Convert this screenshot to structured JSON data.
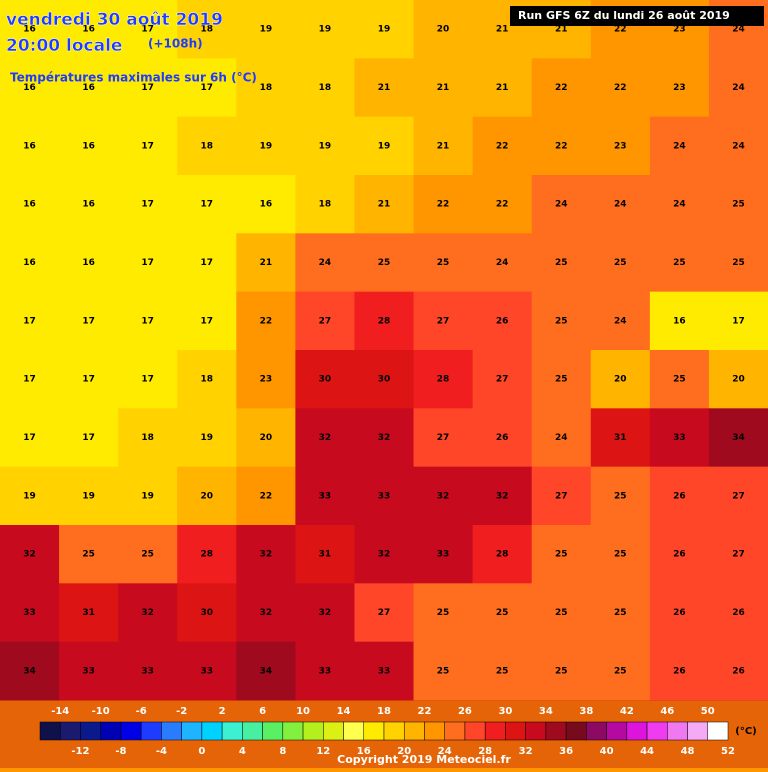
{
  "header": {
    "date": "vendredi 30 août 2019",
    "time": "20:00 locale",
    "lead": "(+108h)",
    "field": "Températures maximales sur 6h (°C)",
    "run": "Run GFS 6Z du lundi 26 août 2019"
  },
  "grid": {
    "rows": [
      [
        16,
        16,
        17,
        18,
        19,
        19,
        19,
        20,
        21,
        21,
        22,
        23,
        24
      ],
      [
        16,
        16,
        17,
        17,
        18,
        18,
        21,
        21,
        21,
        22,
        22,
        23,
        24
      ],
      [
        16,
        16,
        17,
        18,
        19,
        19,
        19,
        21,
        22,
        22,
        23,
        24,
        24
      ],
      [
        16,
        16,
        17,
        17,
        16,
        18,
        21,
        22,
        22,
        24,
        24,
        24,
        25
      ],
      [
        16,
        16,
        17,
        17,
        21,
        24,
        25,
        25,
        24,
        25,
        25,
        25,
        25
      ],
      [
        17,
        17,
        17,
        17,
        22,
        27,
        28,
        27,
        26,
        25,
        24,
        16,
        17
      ],
      [
        17,
        17,
        17,
        18,
        23,
        30,
        30,
        28,
        27,
        25,
        20,
        25,
        20
      ],
      [
        17,
        17,
        18,
        19,
        20,
        32,
        32,
        27,
        26,
        24,
        31,
        33,
        34
      ],
      [
        19,
        19,
        19,
        20,
        22,
        33,
        33,
        32,
        32,
        27,
        25,
        26,
        27
      ],
      [
        32,
        25,
        25,
        28,
        32,
        31,
        32,
        33,
        28,
        25,
        25,
        26,
        27
      ],
      [
        33,
        31,
        32,
        30,
        32,
        32,
        27,
        25,
        25,
        25,
        25,
        26,
        26
      ],
      [
        34,
        33,
        33,
        33,
        34,
        33,
        33,
        25,
        25,
        25,
        25,
        26,
        26
      ]
    ]
  },
  "colorbar": {
    "range": [
      -16,
      52
    ],
    "unit": "(°C)",
    "colors": [
      "#10104a",
      "#1a1a6e",
      "#0a1a8c",
      "#0000b4",
      "#0000e6",
      "#1e3cff",
      "#2a7cff",
      "#1eb4ff",
      "#00d2ff",
      "#3cf0d2",
      "#46f0a0",
      "#5af064",
      "#82f03c",
      "#b4f01e",
      "#dcf014",
      "#ffff50",
      "#ffeb00",
      "#ffd200",
      "#ffb400",
      "#ff9600",
      "#ff6e1e",
      "#ff4628",
      "#f01e1e",
      "#dc1414",
      "#c80a1e",
      "#a00a1e",
      "#780a1e",
      "#8c0a64",
      "#b40aa0",
      "#dc14dc",
      "#f03cf0",
      "#f078f0",
      "#f5aaf5",
      "#ffffff"
    ],
    "ticks_top": [
      -14,
      -10,
      -6,
      -2,
      2,
      6,
      10,
      14,
      18,
      22,
      26,
      30,
      34,
      38,
      42,
      46,
      50
    ],
    "ticks_bottom": [
      -12,
      -8,
      -4,
      0,
      4,
      8,
      12,
      16,
      20,
      24,
      28,
      32,
      36,
      40,
      44,
      48,
      52
    ]
  },
  "copyright": "Copyright 2019 Meteociel.fr"
}
